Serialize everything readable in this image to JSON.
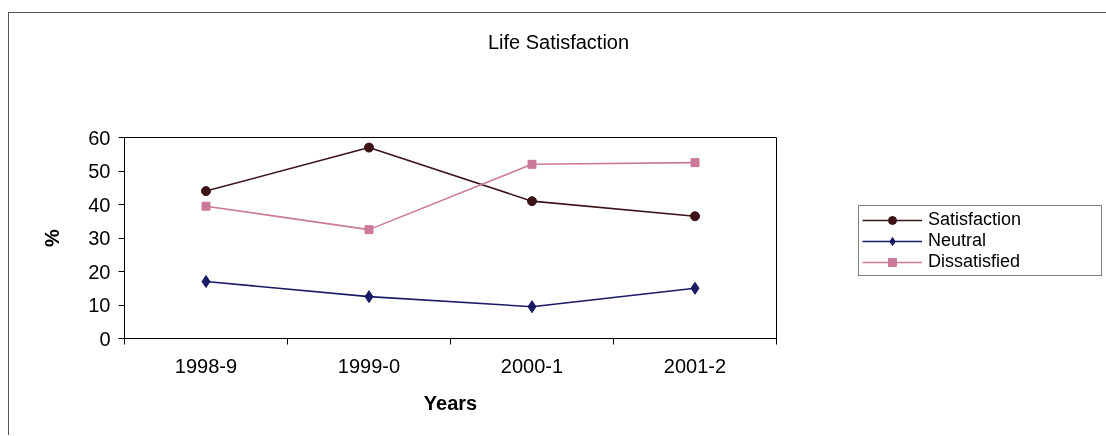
{
  "chart_data": {
    "type": "line",
    "title": "Life Satisfaction",
    "xlabel": "Years",
    "ylabel": "%",
    "categories": [
      "1998-9",
      "1999-0",
      "2000-1",
      "2001-2"
    ],
    "ylim": [
      0,
      60
    ],
    "yticks": [
      0,
      10,
      20,
      30,
      40,
      50,
      60
    ],
    "grid": false,
    "legend": "right",
    "line_style": "solid",
    "series": [
      {
        "name": "Satisfaction",
        "color": "#3c1418",
        "marker": "circle",
        "values": [
          44,
          57,
          41,
          36.5
        ]
      },
      {
        "name": "Neutral",
        "color": "#1a1a66",
        "marker": "diamond",
        "values": [
          17,
          12.5,
          9.5,
          15
        ]
      },
      {
        "name": "Dissatisfied",
        "color": "#cc7a9a",
        "marker": "square",
        "values": [
          39.5,
          32.5,
          52,
          52.5
        ]
      }
    ]
  }
}
